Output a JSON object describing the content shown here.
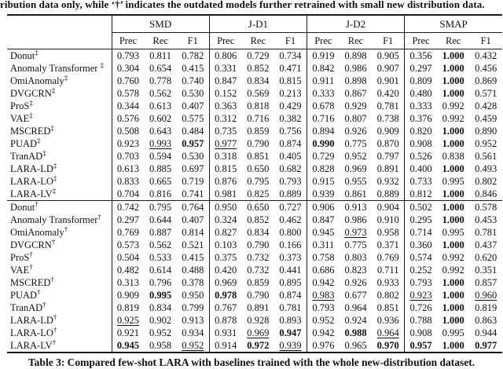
{
  "top_note": "ribution data only, while ‘†’ indicates the outdated models further retrained with small new distribution data.",
  "caption": "Table 3: Compared few-shot LARA with baselines trained with the whole new-distribution dataset.",
  "table": {
    "groups": [
      "SMD",
      "J-D1",
      "J-D2",
      "SMAP"
    ],
    "metrics": [
      "Prec",
      "Rec",
      "F1"
    ],
    "rows": [
      {
        "model": "Donut",
        "sup": "‡",
        "values": [
          "0.793",
          "0.811",
          "0.782",
          "0.806",
          "0.729",
          "0.734",
          "0.919",
          "0.898",
          "0.905",
          "0.356",
          "1.000",
          "0.432"
        ],
        "bold": [
          10
        ],
        "underline": []
      },
      {
        "model": "Anomaly Transformer ",
        "sup": "‡",
        "values": [
          "0.304",
          "0.654",
          "0.415",
          "0.331",
          "0.852",
          "0.471",
          "0.842",
          "0.986",
          "0.907",
          "0.297",
          "1.000",
          "0.456"
        ],
        "bold": [
          10
        ],
        "underline": []
      },
      {
        "model": "OmiAnomaly",
        "sup": "‡",
        "values": [
          "0.760",
          "0.778",
          "0.740",
          "0.847",
          "0.834",
          "0.815",
          "0.911",
          "0.898",
          "0.901",
          "0.809",
          "1.000",
          "0.869"
        ],
        "bold": [
          10
        ],
        "underline": []
      },
      {
        "model": "DVGCRN",
        "sup": "‡",
        "values": [
          "0.578",
          "0.562",
          "0.530",
          "0.152",
          "0.569",
          "0.213",
          "0.333",
          "0.867",
          "0.420",
          "0.480",
          "1.000",
          "0.571"
        ],
        "bold": [
          10
        ],
        "underline": []
      },
      {
        "model": "ProS",
        "sup": "‡",
        "values": [
          "0.344",
          "0.613",
          "0.407",
          "0.363",
          "0.818",
          "0.429",
          "0.678",
          "0.929",
          "0.781",
          "0.333",
          "0.992",
          "0.428"
        ],
        "bold": [],
        "underline": []
      },
      {
        "model": "VAE",
        "sup": "‡",
        "values": [
          "0.576",
          "0.602",
          "0.575",
          "0.312",
          "0.716",
          "0.382",
          "0.716",
          "0.807",
          "0.738",
          "0.376",
          "0.992",
          "0.459"
        ],
        "bold": [],
        "underline": []
      },
      {
        "model": "MSCRED",
        "sup": "‡",
        "values": [
          "0.508",
          "0.643",
          "0.484",
          "0.735",
          "0.859",
          "0.756",
          "0.894",
          "0.926",
          "0.909",
          "0.820",
          "1.000",
          "0.890"
        ],
        "bold": [
          10
        ],
        "underline": []
      },
      {
        "model": "PUAD",
        "sup": "‡",
        "values": [
          "0.923",
          "0.993",
          "0.957",
          "0.977",
          "0.790",
          "0.874",
          "0.990",
          "0.775",
          "0.870",
          "0.908",
          "1.000",
          "0.952"
        ],
        "bold": [
          2,
          6,
          10
        ],
        "underline": [
          1,
          3
        ]
      },
      {
        "model": "TranAD",
        "sup": "‡",
        "values": [
          "0.703",
          "0.594",
          "0.530",
          "0.318",
          "0.851",
          "0.405",
          "0.729",
          "0.952",
          "0.797",
          "0.526",
          "0.838",
          "0.561"
        ],
        "bold": [],
        "underline": []
      },
      {
        "model": "LARA-LD",
        "sup": "‡",
        "values": [
          "0.613",
          "0.885",
          "0.697",
          "0.815",
          "0.650",
          "0.682",
          "0.828",
          "0.969",
          "0.891",
          "0.400",
          "1.000",
          "0.493"
        ],
        "bold": [
          10
        ],
        "underline": []
      },
      {
        "model": "LARA-LO",
        "sup": "‡",
        "values": [
          "0.833",
          "0.665",
          "0.719",
          "0.876",
          "0.795",
          "0.793",
          "0.915",
          "0.955",
          "0.932",
          "0.733",
          "0.995",
          "0.802"
        ],
        "bold": [],
        "underline": []
      },
      {
        "model": "LARA-LV",
        "sup": "‡",
        "values": [
          "0.704",
          "0.816",
          "0.741",
          "0.981",
          "0.825",
          "0.889",
          "0.939",
          "0.861",
          "0.889",
          "0.812",
          "1.000",
          "0.846"
        ],
        "bold": [
          10
        ],
        "underline": []
      },
      {
        "model": "Donut",
        "sup": "†",
        "section_start": true,
        "values": [
          "0.742",
          "0.795",
          "0.764",
          "0.950",
          "0.650",
          "0.727",
          "0.906",
          "0.913",
          "0.904",
          "0.502",
          "1.000",
          "0.578"
        ],
        "bold": [
          10
        ],
        "underline": []
      },
      {
        "model": "Anomaly Transformer",
        "sup": "†",
        "values": [
          "0.297",
          "0.644",
          "0.407",
          "0.324",
          "0.852",
          "0.462",
          "0.847",
          "0.986",
          "0.910",
          "0.295",
          "1.000",
          "0.453"
        ],
        "bold": [
          10
        ],
        "underline": []
      },
      {
        "model": "OmiAnomaly",
        "sup": "†",
        "values": [
          "0.769",
          "0.887",
          "0.814",
          "0.827",
          "0.834",
          "0.800",
          "0.945",
          "0.973",
          "0.958",
          "0.714",
          "0.995",
          "0.781"
        ],
        "bold": [],
        "underline": [
          7
        ]
      },
      {
        "model": "DVGCRN",
        "sup": "†",
        "values": [
          "0.573",
          "0.562",
          "0.521",
          "0.103",
          "0.790",
          "0.166",
          "0.311",
          "0.775",
          "0.371",
          "0.360",
          "1.000",
          "0.437"
        ],
        "bold": [
          10
        ],
        "underline": []
      },
      {
        "model": "ProS",
        "sup": "†",
        "values": [
          "0.504",
          "0.533",
          "0.415",
          "0.375",
          "0.732",
          "0.373",
          "0.758",
          "0.803",
          "0.769",
          "0.574",
          "0.992",
          "0.620"
        ],
        "bold": [],
        "underline": []
      },
      {
        "model": "VAE",
        "sup": "†",
        "values": [
          "0.482",
          "0.614",
          "0.488",
          "0.420",
          "0.732",
          "0.441",
          "0.686",
          "0.823",
          "0.711",
          "0.252",
          "0.992",
          "0.351"
        ],
        "bold": [],
        "underline": []
      },
      {
        "model": "MSCRED",
        "sup": "†",
        "values": [
          "0.313",
          "0.796",
          "0.378",
          "0.969",
          "0.859",
          "0.895",
          "0.942",
          "0.926",
          "0.933",
          "0.793",
          "1.000",
          "0.857"
        ],
        "bold": [
          10
        ],
        "underline": []
      },
      {
        "model": "PUAD",
        "sup": "†",
        "values": [
          "0.909",
          "0.995",
          "0.950",
          "0.978",
          "0.790",
          "0.874",
          "0.983",
          "0.677",
          "0.802",
          "0.923",
          "1.000",
          "0.960"
        ],
        "bold": [
          1,
          3,
          10
        ],
        "underline": [
          6,
          9,
          11
        ]
      },
      {
        "model": "TranAD",
        "sup": "†",
        "values": [
          "0.819",
          "0.834",
          "0.799",
          "0.767",
          "0.891",
          "0.781",
          "0.793",
          "0.964",
          "0.851",
          "0.726",
          "1.000",
          "0.819"
        ],
        "bold": [
          10
        ],
        "underline": []
      },
      {
        "model": "LARA-LD",
        "sup": "†",
        "values": [
          "0.925",
          "0.902",
          "0.913",
          "0.878",
          "0.928",
          "0.893",
          "0.952",
          "0.924",
          "0.936",
          "0.788",
          "1.000",
          "0.863"
        ],
        "bold": [
          10
        ],
        "underline": [
          0
        ]
      },
      {
        "model": "LARA-LO",
        "sup": "†",
        "values": [
          "0.921",
          "0.952",
          "0.934",
          "0.931",
          "0.969",
          "0.947",
          "0.942",
          "0.988",
          "0.964",
          "0.908",
          "0.995",
          "0.944"
        ],
        "bold": [
          5,
          7
        ],
        "underline": [
          4,
          8
        ]
      },
      {
        "model": "LARA-LV",
        "sup": "†",
        "values": [
          "0.945",
          "0.958",
          "0.952",
          "0.914",
          "0.972",
          "0.939",
          "0.976",
          "0.965",
          "0.970",
          "0.957",
          "1.000",
          "0.977"
        ],
        "bold": [
          0,
          4,
          8,
          9,
          10,
          11
        ],
        "underline": [
          2,
          5
        ]
      }
    ]
  }
}
